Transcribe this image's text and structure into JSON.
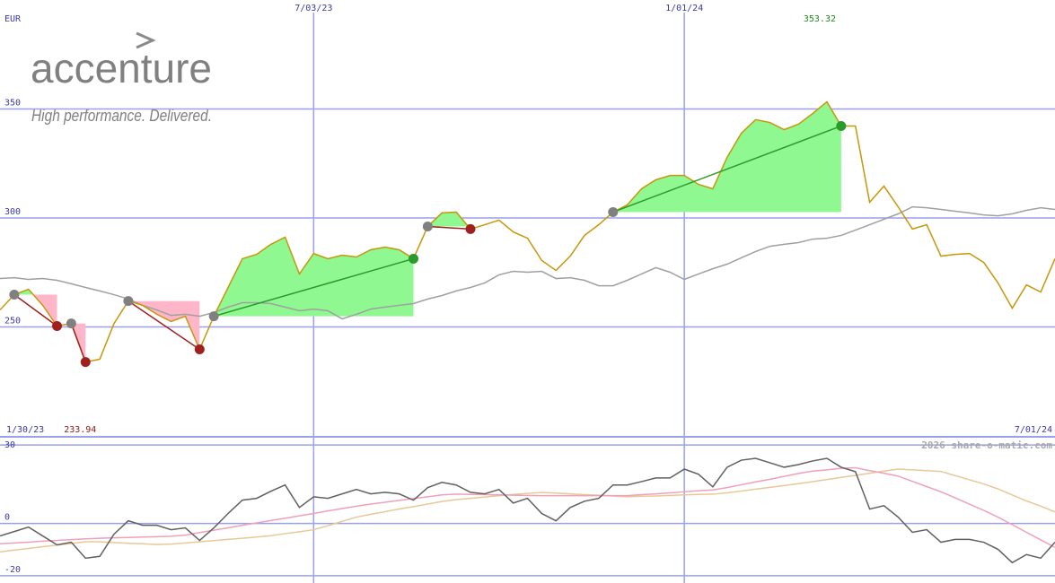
{
  "logo": {
    "name": "accenture",
    "tagline": "High performance. Delivered."
  },
  "chart_data": [
    {
      "type": "line",
      "unit": "EUR",
      "categories": [
        "1/30/23",
        null,
        null,
        null,
        null,
        null,
        null,
        null,
        null,
        null,
        null,
        null,
        null,
        null,
        null,
        null,
        null,
        null,
        null,
        null,
        null,
        null,
        "7/03/23",
        null,
        null,
        null,
        null,
        null,
        null,
        null,
        null,
        null,
        null,
        null,
        null,
        null,
        null,
        null,
        null,
        null,
        null,
        null,
        null,
        null,
        null,
        null,
        null,
        null,
        "1/01/24",
        null,
        null,
        null,
        null,
        null,
        null,
        null,
        null,
        null,
        null,
        null,
        null,
        null,
        null,
        null,
        null,
        null,
        null,
        null,
        null,
        null,
        null,
        null,
        null,
        null,
        "7/01/24"
      ],
      "series": [
        {
          "color": "#a0a0a0",
          "values": [
            272.2,
            272.6,
            271.8,
            272.2,
            271.4,
            269.8,
            268.1,
            266.5,
            264.8,
            262.8,
            259.9,
            257.8,
            255.3,
            255.8,
            254.9,
            256.6,
            259.1,
            261.1,
            261.1,
            260.7,
            259.1,
            257.4,
            258.2,
            257.4,
            253.7,
            255.8,
            258.2,
            259.1,
            259.9,
            260.7,
            262.8,
            264.4,
            266.5,
            268.1,
            270.2,
            273.9,
            275.5,
            275.1,
            275.5,
            272.2,
            272.6,
            271.4,
            268.9,
            268.9,
            271.4,
            274.3,
            277.2,
            275.1,
            271.8,
            274.3,
            276.7,
            278.8,
            281.7,
            284.6,
            287.0,
            287.9,
            288.7,
            290.3,
            290.7,
            292.0,
            294.4,
            296.9,
            299.4,
            301.9,
            305.1,
            304.7,
            303.9,
            303.1,
            302.3,
            301.4,
            301.0,
            301.9,
            303.5,
            304.7,
            303.9
          ]
        },
        {
          "color": "#c8960a",
          "values": [
            257.8,
            264.8,
            267.3,
            259.9,
            250.4,
            251.6,
            233.9,
            235.2,
            251.6,
            261.9,
            259.9,
            255.8,
            252.5,
            254.9,
            239.7,
            254.9,
            268.1,
            281.3,
            283.3,
            287.9,
            291.2,
            274.3,
            283.7,
            281.3,
            282.9,
            282.1,
            285.4,
            286.6,
            285.4,
            281.3,
            296.1,
            302.3,
            302.7,
            294.9,
            296.9,
            299.0,
            293.6,
            290.7,
            280.5,
            275.9,
            282.5,
            292.0,
            296.9,
            302.7,
            306.0,
            313.4,
            317.5,
            319.5,
            319.5,
            315.4,
            313.4,
            327.8,
            338.9,
            345.1,
            343.8,
            340.5,
            343.0,
            347.9,
            353.3,
            342.2,
            342.2,
            307.2,
            314.6,
            305.1,
            294.9,
            296.9,
            282.5,
            283.3,
            283.7,
            279.6,
            270.2,
            258.6,
            269.3,
            266.0,
            281.3
          ]
        }
      ],
      "trades": [
        {
          "start": 1,
          "end": 4
        },
        {
          "start": 5,
          "end": 6
        },
        {
          "start": 9,
          "end": 14
        },
        {
          "start": 15,
          "end": 29
        },
        {
          "start": 30,
          "end": 33
        },
        {
          "start": 43,
          "end": 59
        }
      ],
      "trade_series": 1,
      "gain_color": "#2a9a2a",
      "loss_color": "#a02020",
      "gain_fill": "#90f890",
      "loss_fill": "#ffb6c8",
      "high": 353.32,
      "low": 233.94,
      "high_color": "#228822",
      "low_color": "#8b1a1a",
      "ylim": [
        200,
        400
      ],
      "yticks": [
        250,
        300,
        350
      ],
      "grid": true,
      "grid_color": "#9aa0ee"
    },
    {
      "type": "line",
      "annotation": "2026 share-o-matic.com",
      "series": [
        {
          "color": "#e8c898",
          "values": [
            -10.9,
            -10.2,
            -9.6,
            -8.9,
            -8.3,
            -7.7,
            -7.0,
            -7.0,
            -7.3,
            -7.6,
            -7.8,
            -8.1,
            -7.9,
            -7.5,
            -7.0,
            -6.6,
            -6.1,
            -5.7,
            -5.2,
            -4.7,
            -3.9,
            -3.2,
            -2.4,
            -0.9,
            0.8,
            2.4,
            3.5,
            4.5,
            5.5,
            6.4,
            7.4,
            8.4,
            9.1,
            9.6,
            10.1,
            10.6,
            11.1,
            11.5,
            11.8,
            11.6,
            11.3,
            11.0,
            10.8,
            10.5,
            10.2,
            10.4,
            10.5,
            10.7,
            10.9,
            11.1,
            11.2,
            11.7,
            12.4,
            13.1,
            13.8,
            14.5,
            15.2,
            16.0,
            16.8,
            17.6,
            18.4,
            19.2,
            20.0,
            20.8,
            20.5,
            20.2,
            19.9,
            18.3,
            16.7,
            15.1,
            13.2,
            10.9,
            8.6,
            6.6,
            4.4
          ]
        },
        {
          "color": "#f0a0b8",
          "values": [
            -7.8,
            -7.5,
            -7.2,
            -6.8,
            -6.5,
            -6.2,
            -5.9,
            -5.7,
            -5.5,
            -5.4,
            -5.2,
            -5.1,
            -4.9,
            -4.5,
            -3.5,
            -2.6,
            -1.7,
            -0.7,
            0.2,
            1.1,
            2.0,
            2.9,
            3.8,
            4.8,
            5.7,
            6.6,
            7.4,
            8.1,
            8.8,
            9.5,
            10.2,
            10.9,
            11.2,
            11.1,
            11.0,
            10.9,
            10.8,
            10.7,
            10.6,
            10.6,
            10.6,
            10.6,
            10.6,
            10.6,
            10.6,
            11.0,
            11.3,
            11.7,
            12.1,
            12.5,
            12.8,
            13.7,
            14.8,
            15.9,
            16.9,
            18.0,
            19.1,
            20.0,
            20.5,
            21.1,
            21.3,
            20.2,
            19.2,
            18.1,
            16.1,
            14.1,
            12.1,
            9.8,
            7.4,
            5.0,
            2.4,
            -0.5,
            -3.4,
            -6.3,
            -9.2
          ]
        },
        {
          "color": "#606060",
          "values": [
            -4.8,
            -3.1,
            -1.4,
            -4.8,
            -8.2,
            -7.2,
            -13.3,
            -12.6,
            -4.1,
            1.0,
            -0.7,
            -0.7,
            -2.4,
            -1.7,
            -6.5,
            -1.7,
            3.8,
            8.9,
            9.6,
            12.3,
            14.7,
            6.1,
            10.2,
            9.6,
            11.3,
            13.0,
            11.3,
            11.9,
            11.3,
            8.9,
            13.7,
            15.7,
            14.7,
            11.9,
            11.3,
            13.0,
            7.8,
            9.6,
            3.8,
            1.0,
            6.1,
            8.5,
            9.6,
            14.7,
            14.7,
            16.0,
            17.4,
            17.4,
            20.8,
            18.8,
            14.0,
            21.5,
            24.2,
            24.9,
            23.2,
            21.5,
            22.5,
            23.9,
            24.9,
            21.5,
            19.8,
            5.5,
            6.8,
            2.4,
            -3.4,
            -2.4,
            -7.2,
            -6.1,
            -6.1,
            -7.2,
            -9.9,
            -15.0,
            -11.9,
            -13.3,
            -7.2
          ]
        }
      ],
      "ylim": [
        -22.8,
        32.8
      ],
      "yticks": [
        30,
        0,
        -20
      ],
      "grid": true,
      "grid_color": "#9aa0ee"
    }
  ]
}
